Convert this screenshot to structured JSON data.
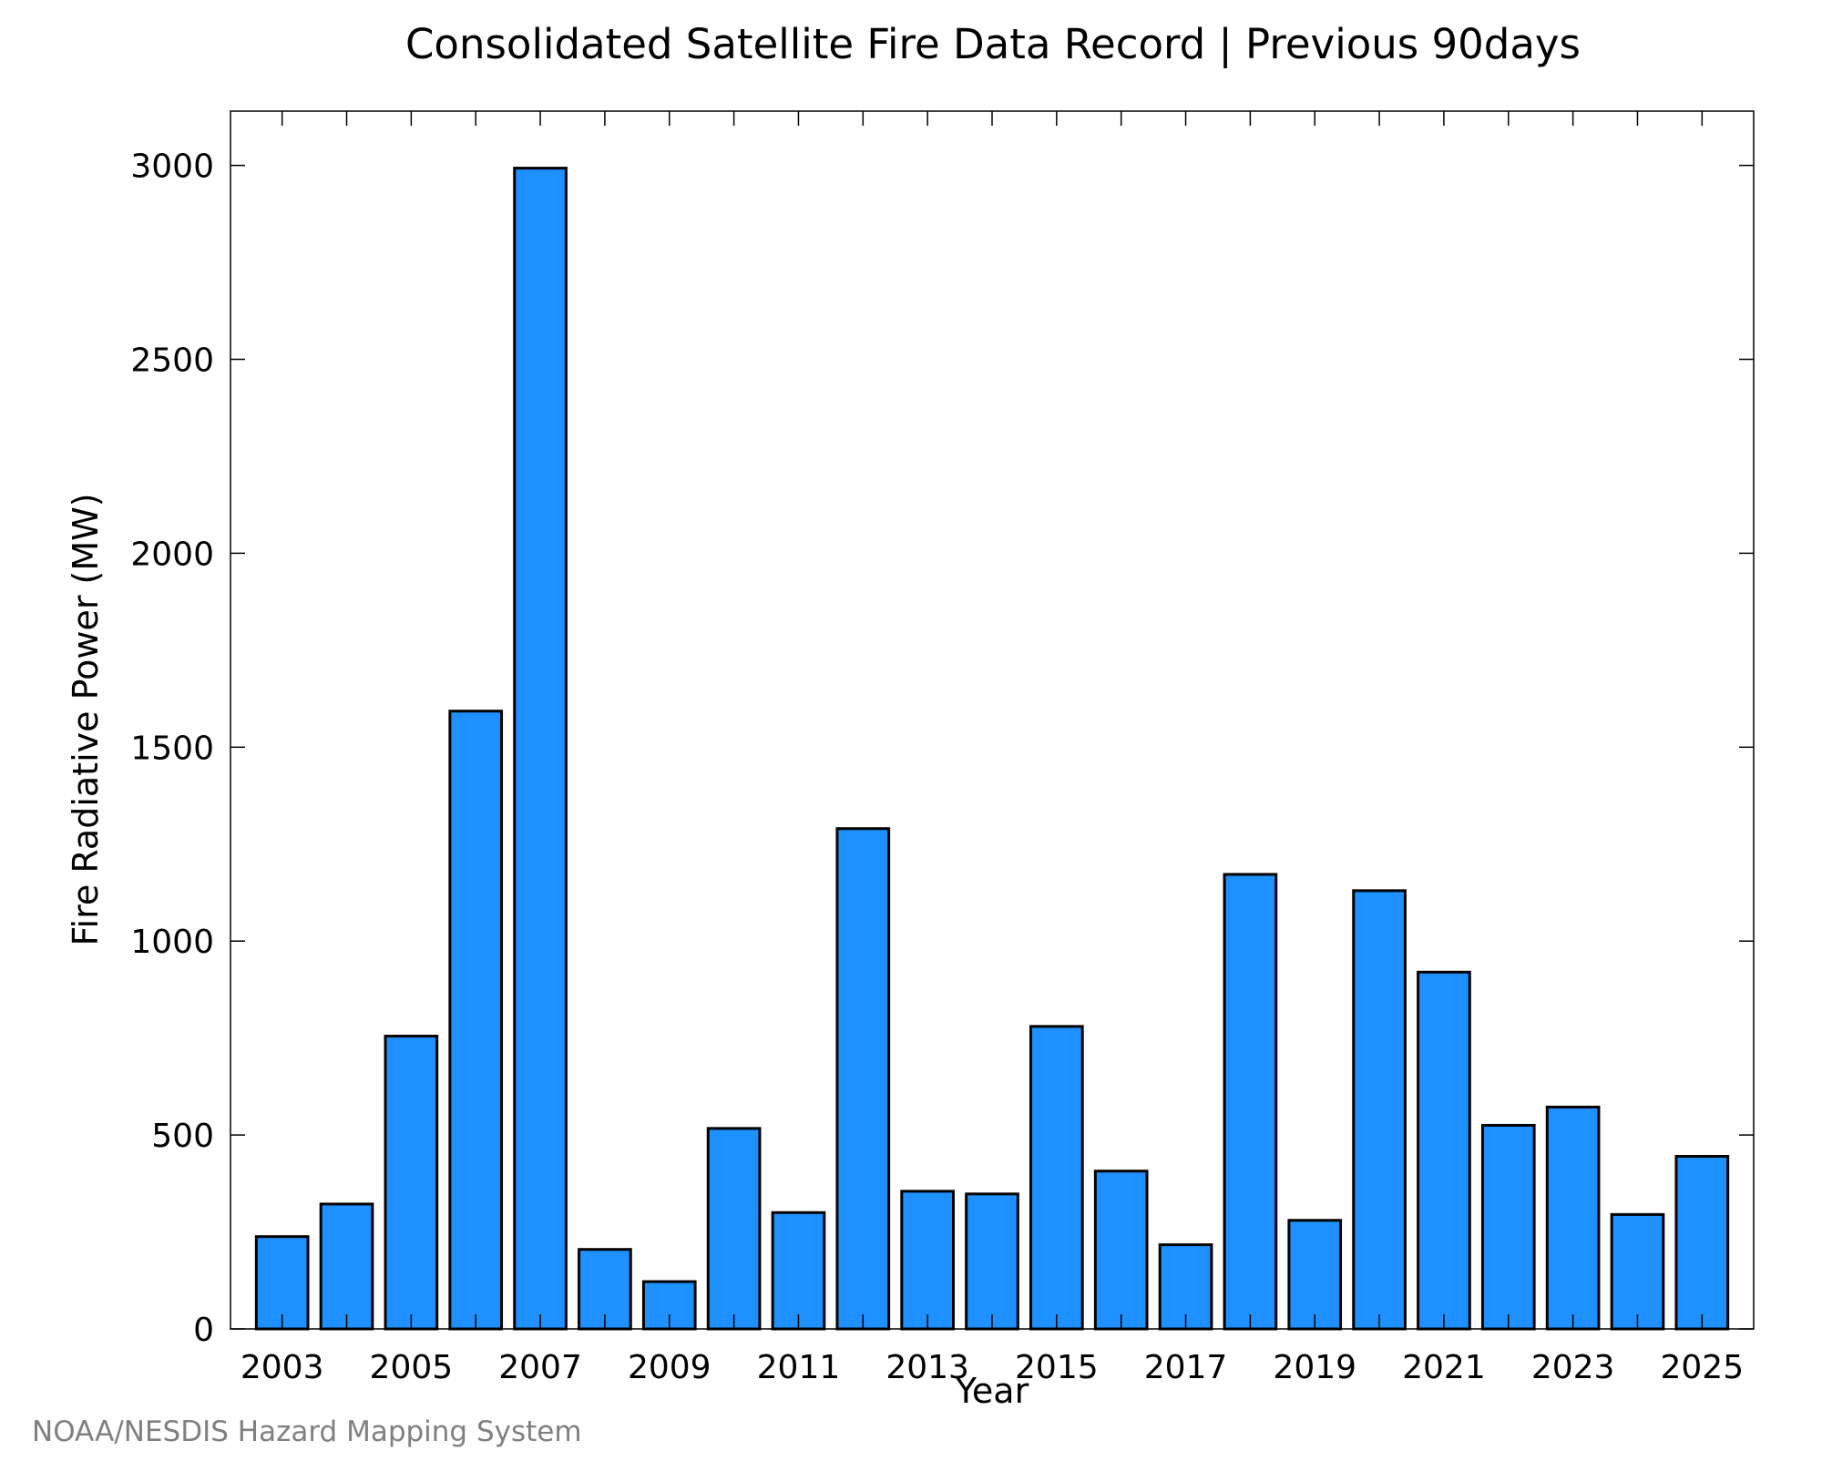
{
  "chart_data": {
    "type": "bar",
    "title": "Consolidated Satellite Fire Data Record | Previous 90days",
    "xlabel": "Year",
    "ylabel": "Fire Radiative Power (MW)",
    "ylim": [
      0,
      3140
    ],
    "y_ticks": [
      0,
      500,
      1000,
      1500,
      2000,
      2500,
      3000
    ],
    "x_tick_labels": [
      "2003",
      "2005",
      "2007",
      "2009",
      "2011",
      "2013",
      "2015",
      "2017",
      "2019",
      "2021",
      "2023",
      "2025"
    ],
    "categories": [
      2003,
      2004,
      2005,
      2006,
      2007,
      2008,
      2009,
      2010,
      2011,
      2012,
      2013,
      2014,
      2015,
      2016,
      2017,
      2018,
      2019,
      2020,
      2021,
      2022,
      2023,
      2024,
      2025
    ],
    "values": [
      238,
      322,
      755,
      1593,
      2993,
      205,
      122,
      517,
      300,
      1290,
      355,
      348,
      780,
      407,
      217,
      1172,
      280,
      1130,
      920,
      525,
      572,
      295,
      445
    ],
    "bar_color": "#1e90ff",
    "bar_edge_color": "#000000",
    "grid": false,
    "legend": "none"
  },
  "footer": {
    "credit": "NOAA/NESDIS Hazard Mapping System"
  }
}
